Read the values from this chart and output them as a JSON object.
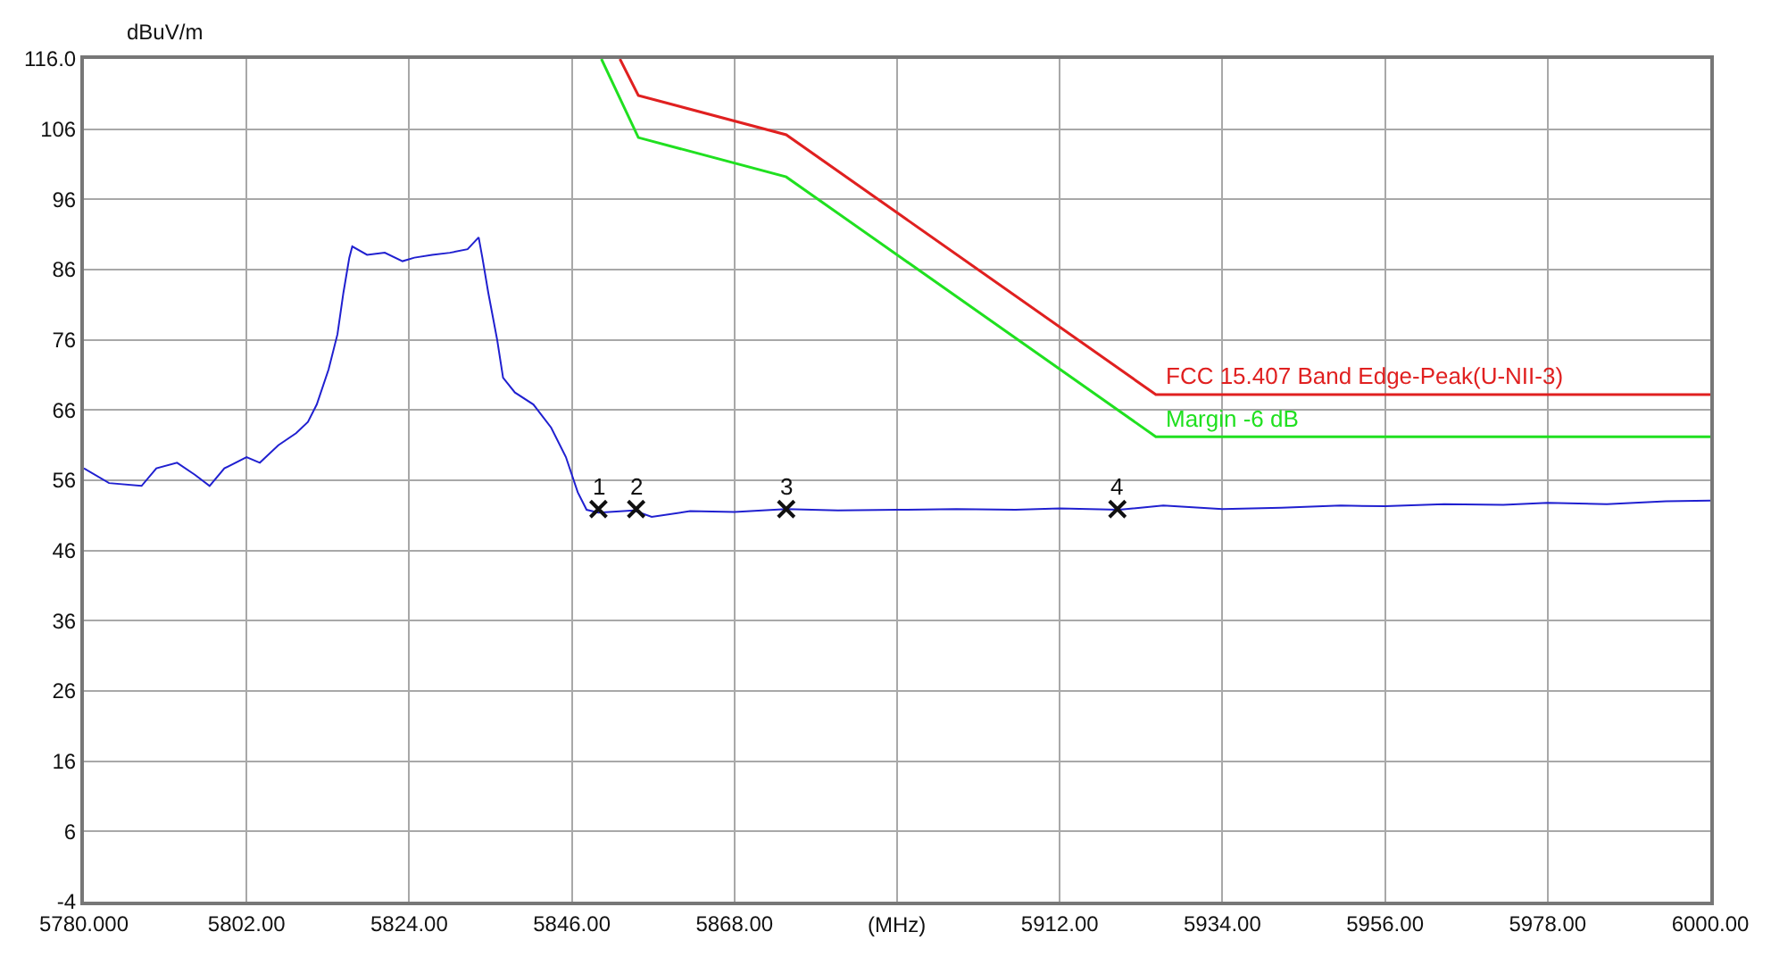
{
  "chart_data": {
    "type": "line",
    "xlabel": "(MHz)",
    "ylabel": "dBuV/m",
    "xlim": [
      5780,
      6000
    ],
    "xticks": [
      {
        "value": 5780,
        "label": "5780.000"
      },
      {
        "value": 5802,
        "label": "5802.00"
      },
      {
        "value": 5824,
        "label": "5824.00"
      },
      {
        "value": 5846,
        "label": "5846.00"
      },
      {
        "value": 5868,
        "label": "5868.00"
      },
      {
        "value": 5890,
        "label": null
      },
      {
        "value": 5912,
        "label": "5912.00"
      },
      {
        "value": 5934,
        "label": "5934.00"
      },
      {
        "value": 5956,
        "label": "5956.00"
      },
      {
        "value": 5978,
        "label": "5978.00"
      },
      {
        "value": 6000,
        "label": "6000.00"
      }
    ],
    "ylim": [
      -4,
      116
    ],
    "yticks": [
      -4,
      6,
      16,
      26,
      36,
      46,
      56,
      66,
      76,
      86,
      96,
      106,
      {
        "value": 116,
        "label": "116.0"
      }
    ],
    "grid": true,
    "series": [
      {
        "color": "#2020d0",
        "x": [
          5780,
          5783.4,
          5787.8,
          5789.8,
          5792.6,
          5795,
          5797,
          5799,
          5802,
          5803.8,
          5806.3,
          5808.7,
          5810.3,
          5811.5,
          5813.1,
          5814.3,
          5815.1,
          5815.9,
          5816.3,
          5818.3,
          5820.7,
          5823.1,
          5824.7,
          5827.1,
          5829.5,
          5831.9,
          5833.4,
          5833.9,
          5834.7,
          5835.9,
          5836.7,
          5838.3,
          5840.8,
          5843.2,
          5845.2,
          5846.8,
          5848,
          5849.6,
          5854.4,
          5856.8,
          5862,
          5868,
          5875,
          5882,
          5890,
          5898,
          5906,
          5912,
          5920,
          5926,
          5934,
          5942,
          5950,
          5956,
          5964,
          5972,
          5978,
          5986,
          5994,
          6000
        ],
        "values": [
          57.7,
          55.6,
          55.2,
          57.7,
          58.5,
          56.8,
          55.2,
          57.7,
          59.3,
          58.5,
          61,
          62.7,
          64.3,
          66.8,
          71.8,
          76.8,
          82.7,
          87.7,
          89.3,
          88.1,
          88.4,
          87.2,
          87.7,
          88.1,
          88.4,
          88.9,
          90.6,
          87.7,
          82.7,
          76,
          70.6,
          68.5,
          66.8,
          63.5,
          59.3,
          54.3,
          51.8,
          51.4,
          51.7,
          50.8,
          51.6,
          51.5,
          51.9,
          51.7,
          51.8,
          51.9,
          51.8,
          52,
          51.8,
          52.4,
          51.9,
          52.1,
          52.4,
          52.3,
          52.6,
          52.5,
          52.8,
          52.6,
          53,
          53.1
        ]
      },
      {
        "name": "FCC 15.407 Band Edge-Peak(U-NII-3)",
        "color": "#e02020",
        "x": [
          5852.5,
          5855,
          5875,
          5925,
          6000
        ],
        "values": [
          116,
          110.8,
          105.2,
          68.2,
          68.2
        ]
      },
      {
        "name": "Margin -6 dB",
        "color": "#20e020",
        "x": [
          5850,
          5855,
          5875,
          5925,
          6000
        ],
        "values": [
          116,
          104.8,
          99.2,
          62.2,
          62.2
        ]
      },
      {
        "type": "scatter",
        "marker": "cross",
        "color": "#101010",
        "x": [
          5849.6,
          5854.7,
          5875,
          5919.8
        ],
        "values": [
          51.9,
          51.9,
          51.9,
          51.9
        ]
      }
    ],
    "annotations": [
      {
        "text": "1",
        "x": 5849.6,
        "y": 51.9
      },
      {
        "text": "2",
        "x": 5854.7,
        "y": 51.9
      },
      {
        "text": "3",
        "x": 5875,
        "y": 51.9
      },
      {
        "text": "4",
        "x": 5919.8,
        "y": 51.9
      }
    ]
  }
}
